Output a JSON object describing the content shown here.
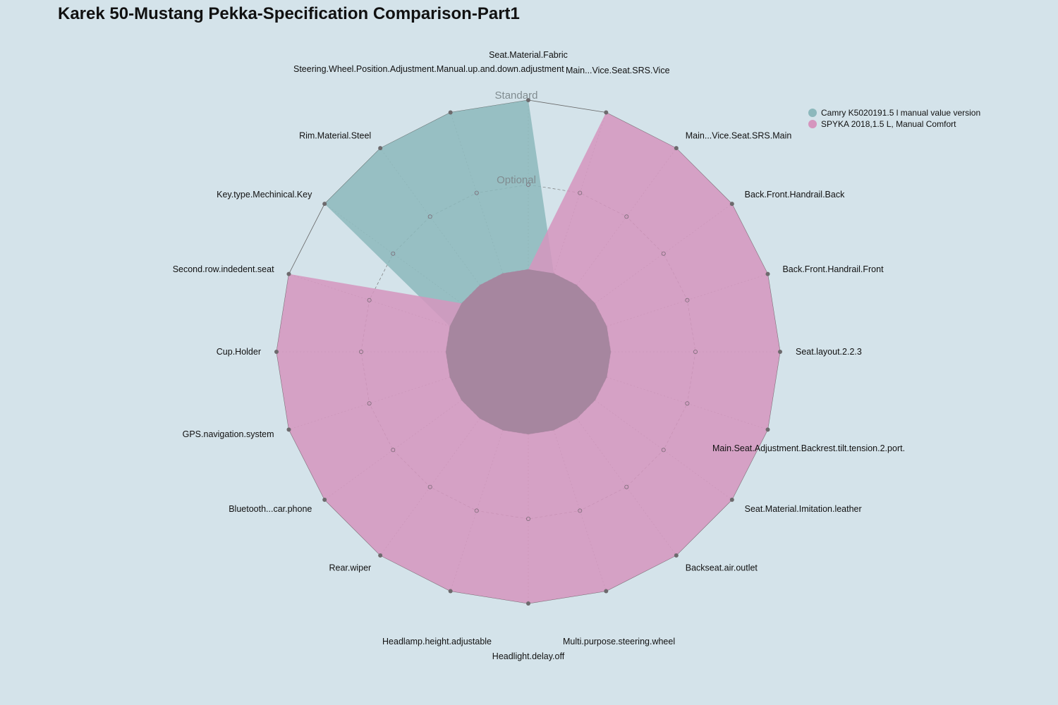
{
  "chart_data": {
    "type": "radar",
    "title": "Karek 50-Mustang Pekka-Specification Comparison-Part1",
    "axes": [
      "Seat.Material.Fabric",
      "Main...Vice.Seat.SRS.Vice",
      "Main...Vice.Seat.SRS.Main",
      "Back.Front.Handrail.Back",
      "Back.Front.Handrail.Front",
      "Seat.layout.2.2.3",
      "Main.Seat.Adjustment.Backrest.tilt.tension.2.port.",
      "Seat.Material.Imitation.leather",
      "Backseat.air.outlet",
      "Multi.purpose.steering.wheel",
      "Headlight.delay.off",
      "Headlamp.height.adjustable",
      "Rear.wiper",
      "Bluetooth...car.phone",
      "GPS.navigation.system",
      "Cup.Holder",
      "Second.row.indedent.seat",
      "Key.type.Mechinical.Key",
      "Rim.Material.Steel",
      "Steering.Wheel.Position.Adjustment.Manual.up.and.down.adjustment"
    ],
    "levels": [
      "",
      "Optional",
      "Standard"
    ],
    "series": [
      {
        "name": "Camry K5020191.5 l manual value version",
        "color": "#8cb8bc",
        "values": [
          2,
          0,
          0,
          0,
          0,
          0,
          0,
          0,
          0,
          0,
          0,
          0,
          0,
          0,
          0,
          0,
          0,
          2,
          2,
          2
        ]
      },
      {
        "name": "SPYKA 2018,1.5 L, Manual Comfort",
        "color": "#d595be",
        "values": [
          0,
          2,
          2,
          2,
          2,
          2,
          2,
          2,
          2,
          2,
          2,
          2,
          2,
          2,
          2,
          2,
          2,
          0,
          0,
          0
        ]
      }
    ],
    "range": [
      0,
      2
    ],
    "legend_position": "top-right"
  }
}
